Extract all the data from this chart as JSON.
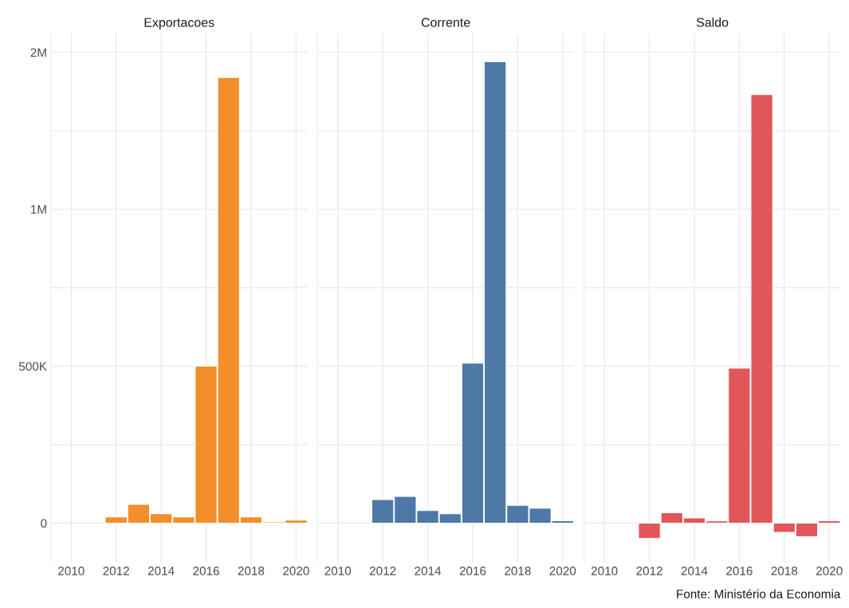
{
  "chart_data": [
    {
      "type": "bar",
      "title": "Exportacoes",
      "x": [
        2012,
        2013,
        2014,
        2015,
        2016,
        2017,
        2018,
        2019,
        2020
      ],
      "color": "#f28e2b",
      "values": [
        20000,
        60000,
        30000,
        20000,
        500000,
        1420000,
        20000,
        4000,
        10000
      ],
      "xlim": [
        2009.1,
        2020.5
      ],
      "xticks": [
        2010,
        2012,
        2014,
        2016,
        2018,
        2020
      ],
      "ylim": [
        -125000,
        1560000
      ],
      "yticks": [
        0,
        {
          "value": 250000,
          "label": null
        },
        {
          "value": 500000,
          "label": "500K"
        },
        {
          "value": 750000,
          "label": null
        },
        {
          "value": 1000000,
          "label": "1M"
        },
        {
          "value": 1250000,
          "label": null
        },
        {
          "value": 1500000,
          "label": "2M"
        }
      ],
      "grid": true
    },
    {
      "type": "bar",
      "title": "Corrente",
      "x": [
        2012,
        2013,
        2014,
        2015,
        2016,
        2017,
        2018,
        2019,
        2020
      ],
      "color": "#4e79a7",
      "values": [
        75000,
        85000,
        40000,
        30000,
        510000,
        1470000,
        57000,
        48000,
        8000
      ],
      "xlim": [
        2009.1,
        2020.5
      ],
      "xticks": [
        2010,
        2012,
        2014,
        2016,
        2018,
        2020
      ],
      "ylim": [
        -125000,
        1560000
      ],
      "yticks": [
        {
          "value": 0,
          "label": null
        },
        {
          "value": 250000,
          "label": null
        },
        {
          "value": 500000,
          "label": null
        },
        {
          "value": 750000,
          "label": null
        },
        {
          "value": 1000000,
          "label": null
        },
        {
          "value": 1250000,
          "label": null
        },
        {
          "value": 1500000,
          "label": null
        }
      ],
      "grid": true,
      "tick_labels": "x"
    },
    {
      "type": "bar",
      "title": "Saldo",
      "x": [
        2012,
        2013,
        2014,
        2015,
        2016,
        2017,
        2018,
        2019,
        2020
      ],
      "color": "#e15759",
      "values": [
        -49000,
        33000,
        17000,
        7000,
        494000,
        1365000,
        -29000,
        -43000,
        8000
      ],
      "xlim": [
        2009.1,
        2020.5
      ],
      "xticks": [
        2010,
        2012,
        2014,
        2016,
        2018,
        2020
      ],
      "ylim": [
        -125000,
        1560000
      ],
      "yticks": [
        {
          "value": 0,
          "label": null
        },
        {
          "value": 250000,
          "label": null
        },
        {
          "value": 500000,
          "label": null
        },
        {
          "value": 750000,
          "label": null
        },
        {
          "value": 1000000,
          "label": null
        },
        {
          "value": 1250000,
          "label": null
        },
        {
          "value": 1500000,
          "label": null
        }
      ],
      "grid": true,
      "tick_labels": "x",
      "annotations": [
        "Fonte: Ministério da Economia"
      ]
    }
  ]
}
